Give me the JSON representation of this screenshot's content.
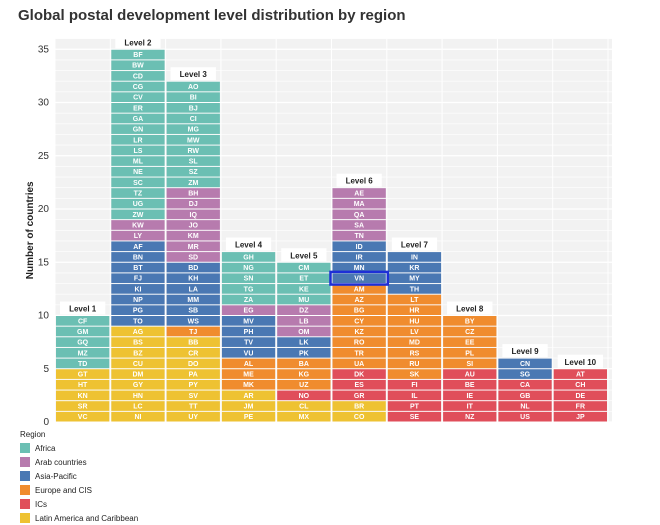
{
  "chart_data": {
    "type": "stacked-tile-bar",
    "title": "Global postal development level distribution by region",
    "ylabel": "Number of countries",
    "xlabel": "",
    "ylim": [
      0,
      36
    ],
    "yticks": [
      0,
      5,
      10,
      15,
      20,
      25,
      30,
      35
    ],
    "legend_title": "Region",
    "legend_position": "bottom-left",
    "regions": [
      {
        "key": "africa",
        "name": "Africa",
        "color": "#6BBFB3"
      },
      {
        "key": "arab",
        "name": "Arab countries",
        "color": "#B77BAE"
      },
      {
        "key": "asia",
        "name": "Asia-Pacific",
        "color": "#4A78B3"
      },
      {
        "key": "europe",
        "name": "Europe and CIS",
        "color": "#F08C2E"
      },
      {
        "key": "ics",
        "name": "ICs",
        "color": "#E04E5A"
      },
      {
        "key": "latam",
        "name": "Latin America and Caribbean",
        "color": "#EEC232"
      }
    ],
    "highlight": {
      "level": "Level 6",
      "code": "VN"
    },
    "levels": [
      {
        "name": "Level 1",
        "stack": [
          {
            "region": "latam",
            "codes": [
              "VC",
              "SR",
              "KN",
              "HT",
              "GT"
            ]
          },
          {
            "region": "africa",
            "codes": [
              "TD",
              "MZ",
              "GQ",
              "GM",
              "CF"
            ]
          }
        ]
      },
      {
        "name": "Level 2",
        "stack": [
          {
            "region": "latam",
            "codes": [
              "NI",
              "LC",
              "HN",
              "GY",
              "DM",
              "CU",
              "BZ",
              "BS",
              "AG"
            ]
          },
          {
            "region": "asia",
            "codes": [
              "TO",
              "PG",
              "NP",
              "KI",
              "FJ",
              "BT",
              "BN",
              "AF"
            ]
          },
          {
            "region": "arab",
            "codes": [
              "LY",
              "KW"
            ]
          },
          {
            "region": "africa",
            "codes": [
              "ZW",
              "UG",
              "TZ",
              "SC",
              "NE",
              "ML",
              "LS",
              "LR",
              "GN",
              "GA",
              "ER",
              "CV",
              "CG",
              "CD",
              "BW",
              "BF"
            ]
          }
        ]
      },
      {
        "name": "Level 3",
        "stack": [
          {
            "region": "latam",
            "codes": [
              "UY",
              "TT",
              "SV",
              "PY",
              "PA",
              "DO",
              "CR",
              "BB"
            ]
          },
          {
            "region": "europe",
            "codes": [
              "TJ"
            ]
          },
          {
            "region": "asia",
            "codes": [
              "WS",
              "SB",
              "MM",
              "LA",
              "KH",
              "BD"
            ]
          },
          {
            "region": "arab",
            "codes": [
              "SD",
              "MR",
              "KM",
              "JO",
              "IQ",
              "DJ",
              "BH"
            ]
          },
          {
            "region": "africa",
            "codes": [
              "ZM",
              "SZ",
              "SL",
              "RW",
              "MW",
              "MG",
              "CI",
              "BJ",
              "BI",
              "AO"
            ]
          }
        ]
      },
      {
        "name": "Level 4",
        "stack": [
          {
            "region": "latam",
            "codes": [
              "PE",
              "JM",
              "AR"
            ]
          },
          {
            "region": "europe",
            "codes": [
              "MK",
              "ME",
              "AL"
            ]
          },
          {
            "region": "asia",
            "codes": [
              "VU",
              "TV",
              "PH",
              "MV"
            ]
          },
          {
            "region": "arab",
            "codes": [
              "EG"
            ]
          },
          {
            "region": "africa",
            "codes": [
              "ZA",
              "TG",
              "SN",
              "NG",
              "GH"
            ]
          }
        ]
      },
      {
        "name": "Level 5",
        "stack": [
          {
            "region": "latam",
            "codes": [
              "MX",
              "CL"
            ]
          },
          {
            "region": "ics",
            "codes": [
              "NO"
            ]
          },
          {
            "region": "europe",
            "codes": [
              "UZ",
              "KG",
              "BA"
            ]
          },
          {
            "region": "asia",
            "codes": [
              "PK",
              "LK"
            ]
          },
          {
            "region": "arab",
            "codes": [
              "OM",
              "LB",
              "DZ"
            ]
          },
          {
            "region": "africa",
            "codes": [
              "MU",
              "KE",
              "ET",
              "CM"
            ]
          }
        ]
      },
      {
        "name": "Level 6",
        "stack": [
          {
            "region": "latam",
            "codes": [
              "CO",
              "BR"
            ]
          },
          {
            "region": "ics",
            "codes": [
              "GR",
              "ES",
              "DK"
            ]
          },
          {
            "region": "europe",
            "codes": [
              "UA",
              "TR",
              "RO",
              "KZ",
              "CY",
              "BG",
              "AZ",
              "AM"
            ]
          },
          {
            "region": "asia",
            "codes": [
              "VN",
              "MN",
              "IR",
              "ID"
            ]
          },
          {
            "region": "arab",
            "codes": [
              "TN",
              "SA",
              "QA",
              "MA",
              "AE"
            ]
          }
        ]
      },
      {
        "name": "Level 7",
        "stack": [
          {
            "region": "ics",
            "codes": [
              "SE",
              "PT",
              "IL",
              "FI"
            ]
          },
          {
            "region": "europe",
            "codes": [
              "SK",
              "RU",
              "RS",
              "MD",
              "LV",
              "HU",
              "HR",
              "LT"
            ]
          },
          {
            "region": "asia",
            "codes": [
              "TH",
              "MY",
              "KR",
              "IN"
            ]
          }
        ]
      },
      {
        "name": "Level 8",
        "stack": [
          {
            "region": "ics",
            "codes": [
              "NZ",
              "IT",
              "IE",
              "BE",
              "AU"
            ]
          },
          {
            "region": "europe",
            "codes": [
              "SI",
              "PL",
              "EE",
              "CZ",
              "BY"
            ]
          }
        ]
      },
      {
        "name": "Level 9",
        "stack": [
          {
            "region": "ics",
            "codes": [
              "US",
              "NL",
              "GB",
              "CA"
            ]
          },
          {
            "region": "asia",
            "codes": [
              "SG",
              "CN"
            ]
          }
        ]
      },
      {
        "name": "Level 10",
        "stack": [
          {
            "region": "ics",
            "codes": [
              "JP",
              "FR",
              "DE",
              "CH",
              "AT"
            ]
          }
        ]
      }
    ]
  }
}
